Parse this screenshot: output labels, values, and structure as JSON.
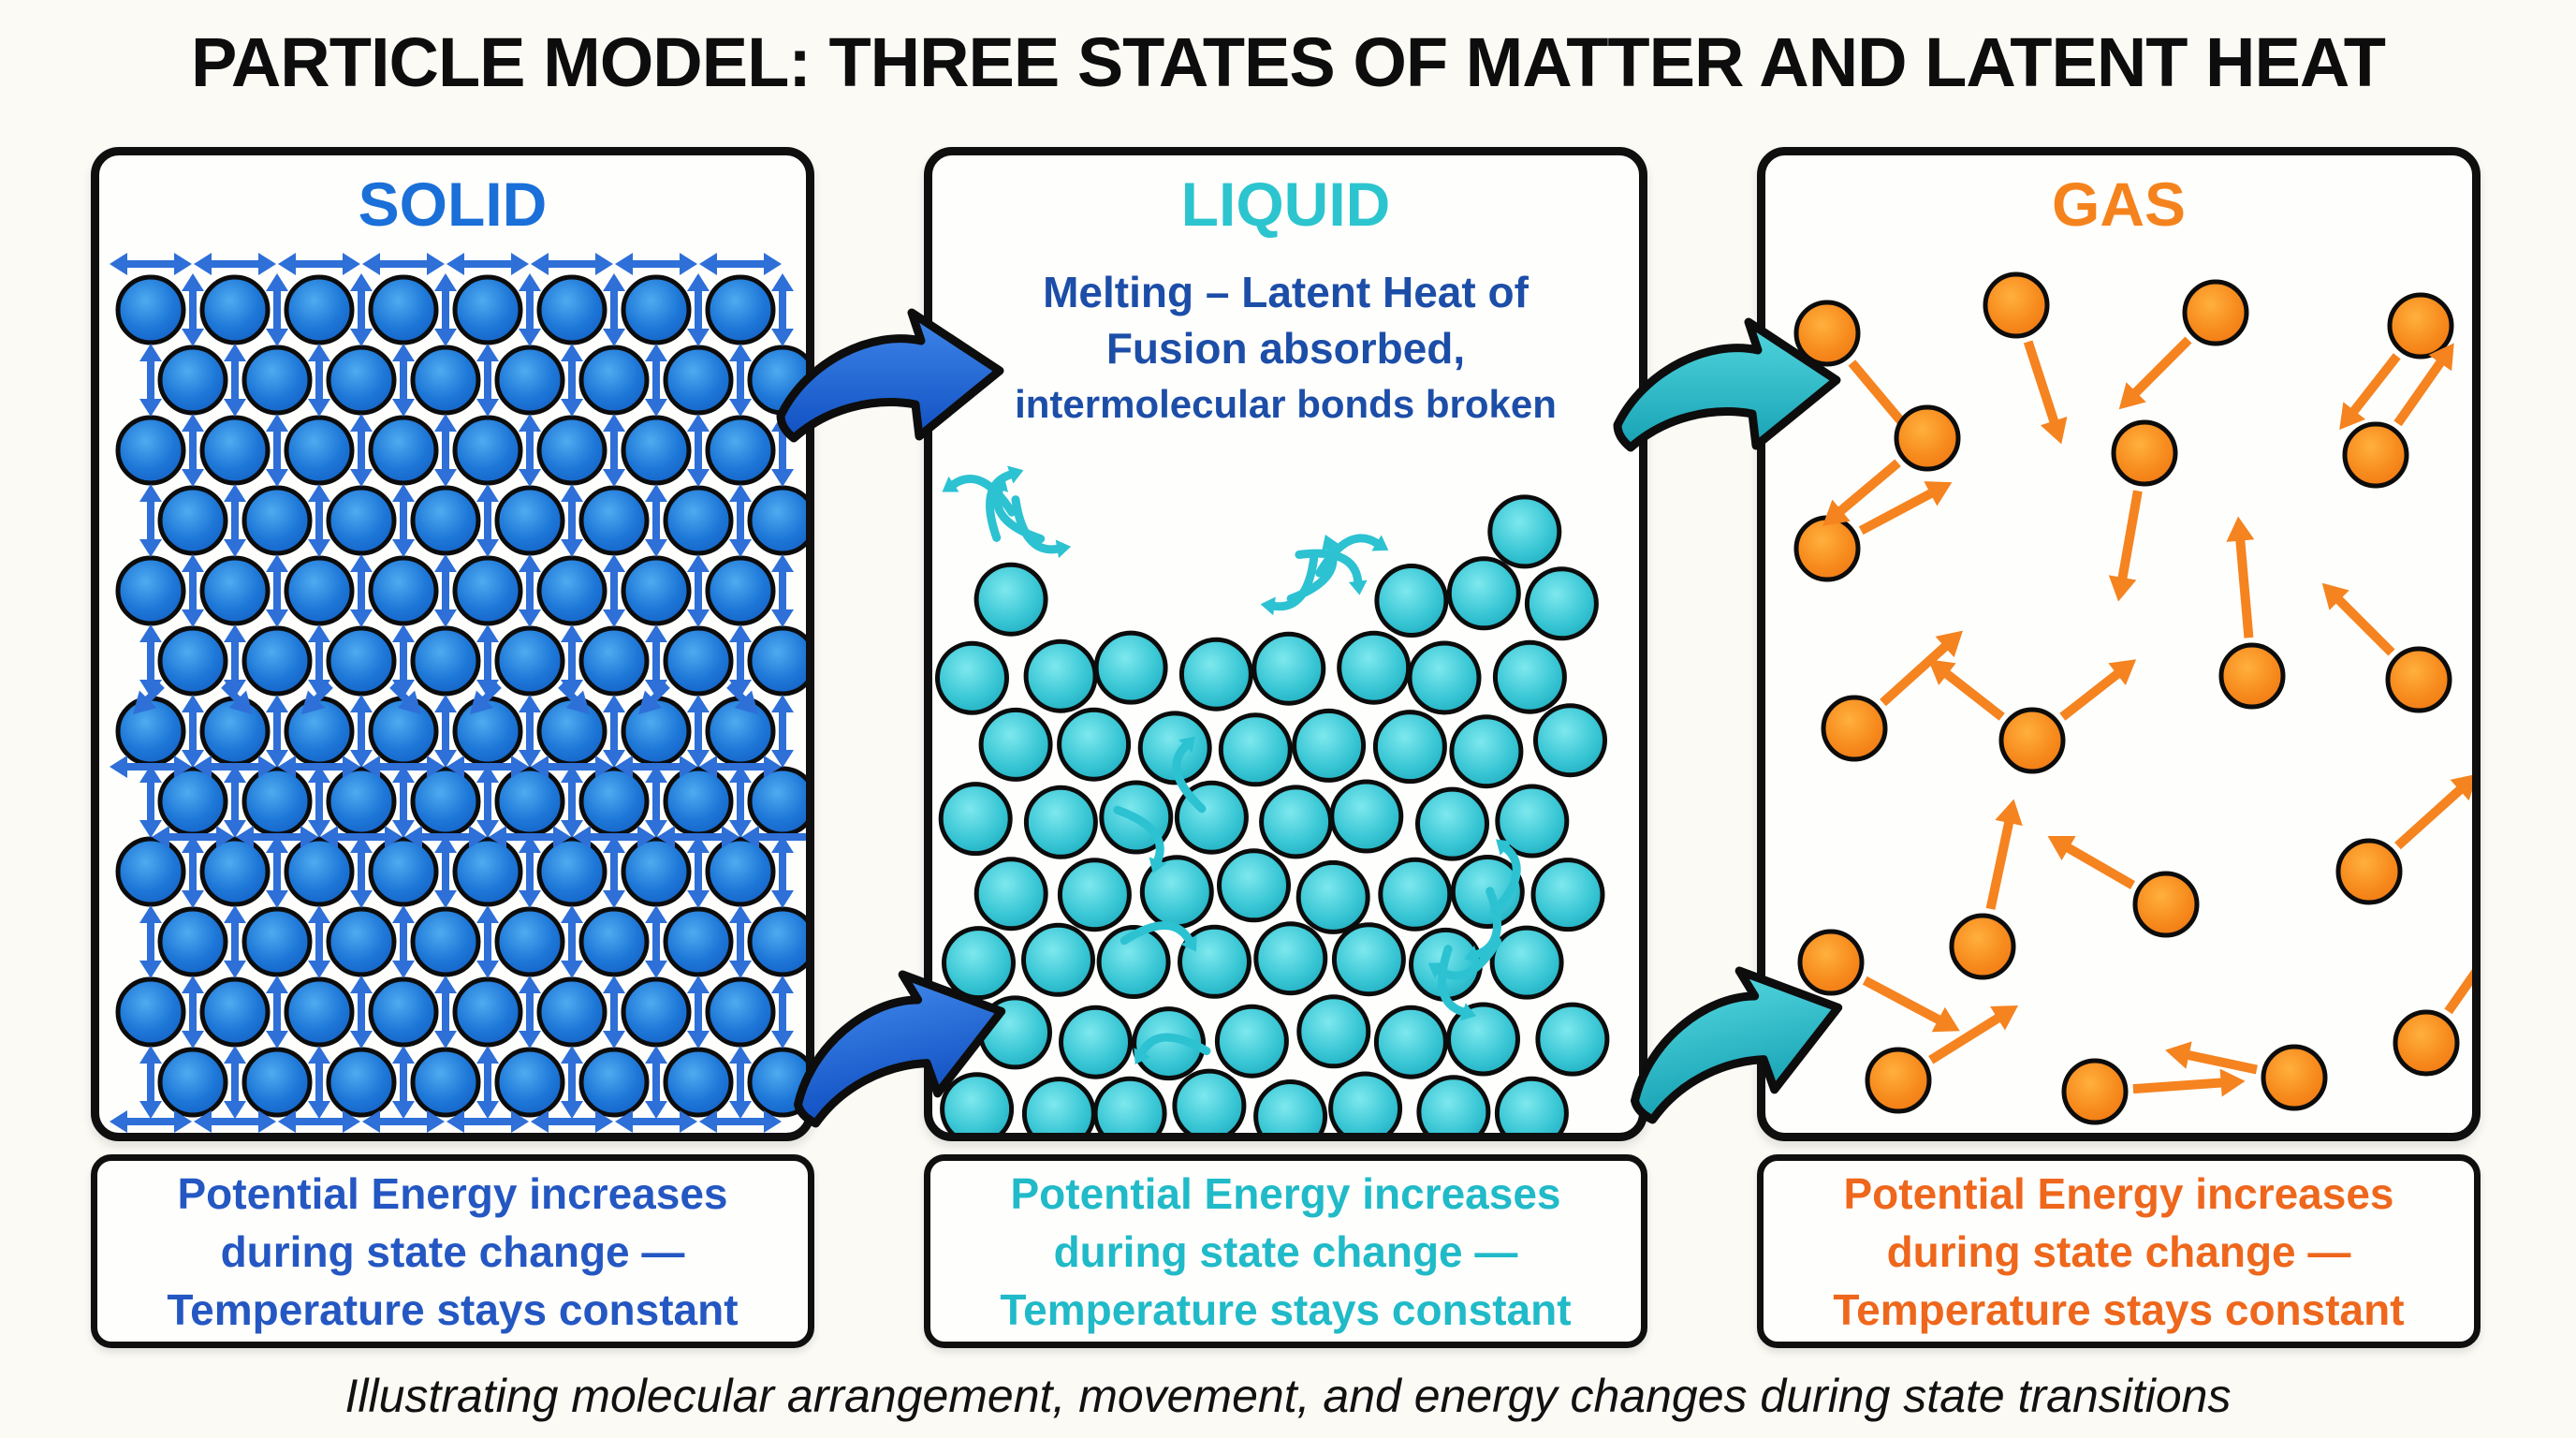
{
  "title": "PARTICLE MODEL: THREE STATES OF MATTER AND LATENT HEAT",
  "footer": "Illustrating molecular arrangement, movement, and energy changes during state transitions",
  "captions": {
    "lines": [
      "Potential Energy increases",
      "during state change —",
      "Temperature stays constant"
    ]
  },
  "panels": {
    "solid": {
      "label": "SOLID",
      "label_color": "#1a6fd8",
      "caption_color": "#2457c2",
      "motion_arrow_color": "#2e6fd8",
      "particle_center": "#4fabf0",
      "particle_mid": "#1e78d8",
      "particle_edge": "#115cc2",
      "particle_outline": "#0c0c0c"
    },
    "liquid": {
      "label": "LIQUID",
      "label_color": "#2cc5cf",
      "caption_color": "#20bac8",
      "note_lines": [
        "Melting – Latent Heat of",
        "Fusion absorbed,",
        "intermolecular bonds broken"
      ],
      "note_color": "#1c4ea8",
      "motion_arrow_color": "#2cc2d2",
      "particle_center": "#7ee8ee",
      "particle_mid": "#3cc8d6",
      "particle_edge": "#17a8bc",
      "particle_outline": "#0c0c0c"
    },
    "gas": {
      "label": "GAS",
      "label_color": "#f5831d",
      "caption_color": "#ee671c",
      "motion_arrow_color": "#f5831f",
      "particle_center": "#ffb03e",
      "particle_mid": "#f78c1e",
      "particle_edge": "#ef7410",
      "particle_outline": "#0c0c0c"
    }
  },
  "transition_arrows": {
    "solid_to_liquid": {
      "color_top": "#3f87ea",
      "color_bottom": "#1150c2",
      "outline": "#0d0d0d"
    },
    "liquid_to_gas": {
      "color_top": "#52d6de",
      "color_bottom": "#17a2b4",
      "outline": "#0d0d0d"
    }
  }
}
